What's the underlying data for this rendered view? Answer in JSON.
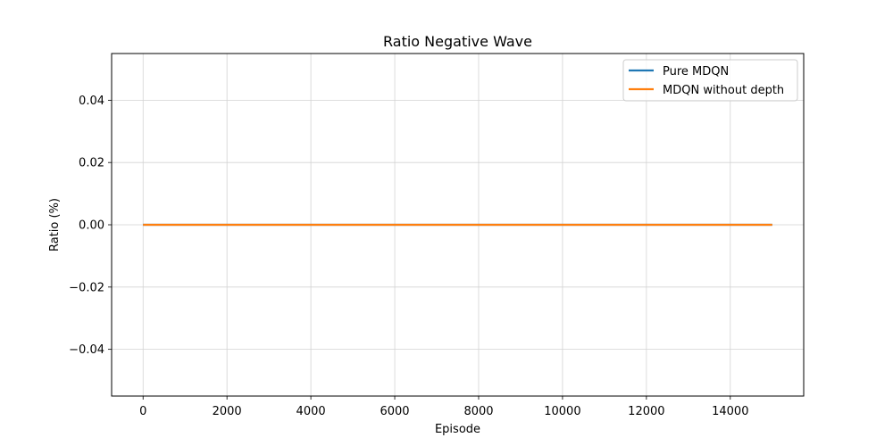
{
  "chart_data": {
    "type": "line",
    "title": "Ratio Negative Wave",
    "xlabel": "Episode",
    "ylabel": "Ratio (%)",
    "xlim": [
      -750,
      15750
    ],
    "ylim": [
      -0.055,
      0.055
    ],
    "xticks": [
      0,
      2000,
      4000,
      6000,
      8000,
      10000,
      12000,
      14000
    ],
    "xtick_labels": [
      "0",
      "2000",
      "4000",
      "6000",
      "8000",
      "10000",
      "12000",
      "14000"
    ],
    "yticks": [
      -0.04,
      -0.02,
      0.0,
      0.02,
      0.04
    ],
    "ytick_labels": [
      "−0.04",
      "−0.02",
      "0.00",
      "0.02",
      "0.04"
    ],
    "grid": true,
    "legend_position": "top-right",
    "series": [
      {
        "name": "Pure MDQN",
        "color": "#1f77b4",
        "x": [
          0,
          15000
        ],
        "y": [
          0,
          0
        ]
      },
      {
        "name": "MDQN without depth",
        "color": "#ff7f0e",
        "x": [
          0,
          15000
        ],
        "y": [
          0,
          0
        ]
      }
    ]
  }
}
